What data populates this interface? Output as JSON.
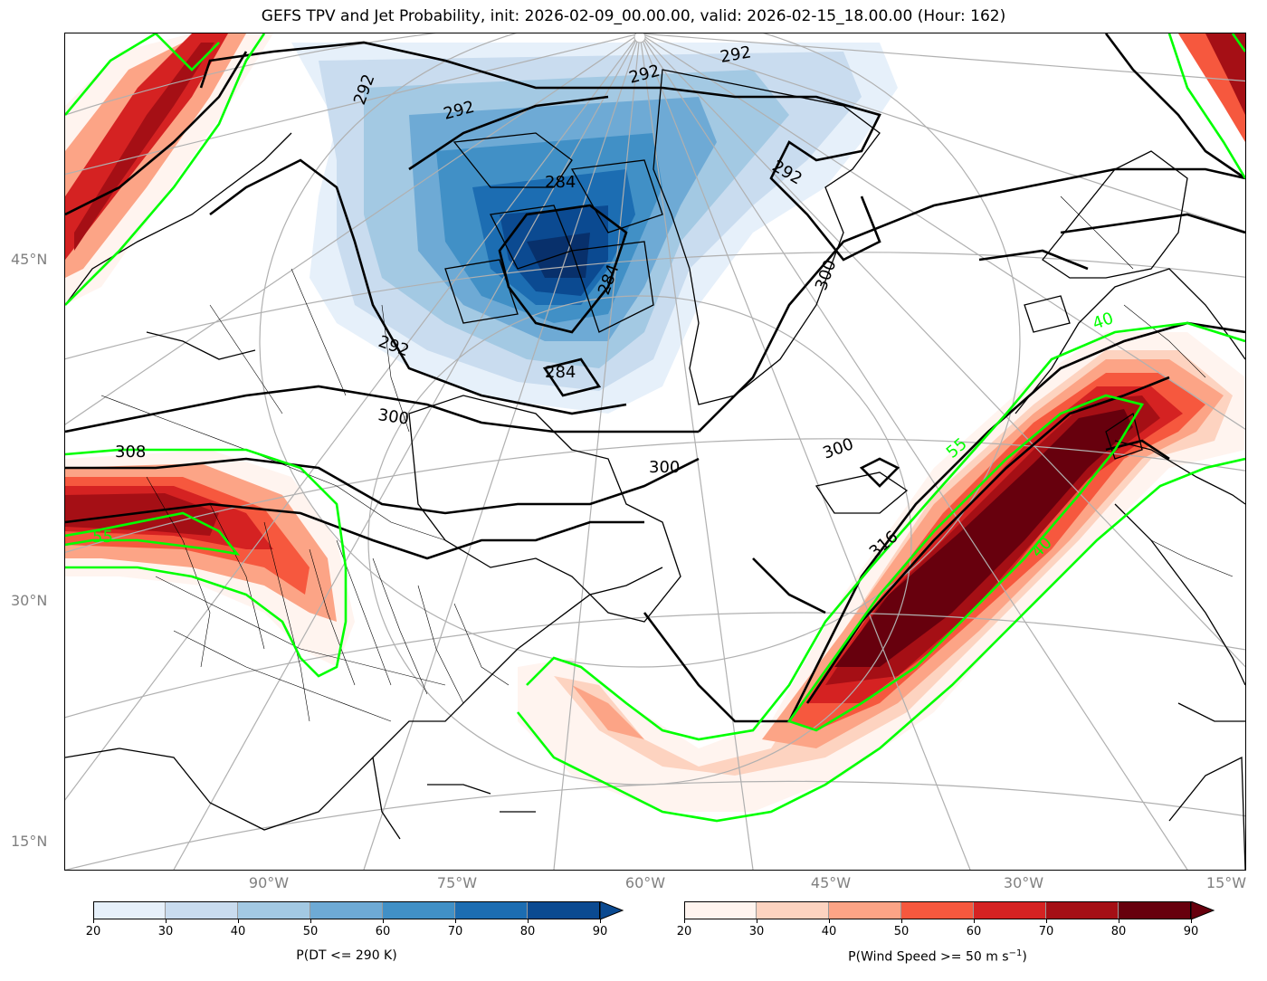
{
  "title": "GEFS TPV and Jet Probability, init: 2026-02-09_00.00.00, valid: 2026-02-15_18.00.00 (Hour: 162)",
  "lat_labels": [
    "45°N",
    "30°N",
    "15°N"
  ],
  "lon_labels": [
    "90°W",
    "75°W",
    "60°W",
    "45°W",
    "30°W",
    "15°W"
  ],
  "contour_labels": {
    "dt": [
      "292",
      "292",
      "292",
      "292",
      "292",
      "292",
      "284",
      "284",
      "284",
      "300",
      "300",
      "300",
      "300",
      "308",
      "316"
    ],
    "wind": [
      "55",
      "55",
      "40",
      "40"
    ]
  },
  "colorbar_tpv": {
    "label": "P(DT <= 290 K)",
    "ticks": [
      "20",
      "30",
      "40",
      "50",
      "60",
      "70",
      "80",
      "90"
    ],
    "colors": [
      "#e6f0fa",
      "#c9dcef",
      "#a3c9e3",
      "#6eaad5",
      "#4190c6",
      "#1c6db2",
      "#0b4a91"
    ]
  },
  "colorbar_jet": {
    "label_text": "P(Wind Speed >= 50 m s",
    "label_sup": "−1",
    "label_end": ")",
    "ticks": [
      "20",
      "30",
      "40",
      "50",
      "60",
      "70",
      "80",
      "90"
    ],
    "colors": [
      "#fff4ef",
      "#fdd3c0",
      "#fca486",
      "#f6583e",
      "#d52222",
      "#a50f15",
      "#67000d"
    ]
  },
  "legend_colors": {
    "dt_contour": "#000000",
    "wind_contour": "#00ff00",
    "gridline": "#b0b0b0",
    "coastline": "#000000"
  }
}
